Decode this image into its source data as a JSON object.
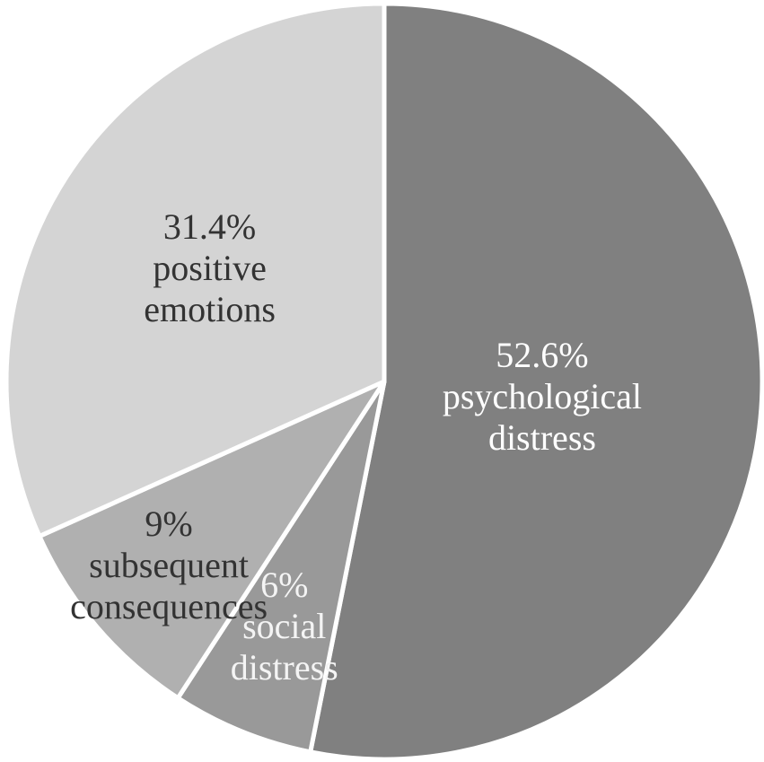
{
  "chart_data": {
    "type": "pie",
    "categories": [
      "psychological distress",
      "social distress",
      "subsequent consequences",
      "positive emotions"
    ],
    "values": [
      52.6,
      6,
      9,
      31.4
    ],
    "value_labels": [
      "52.6%",
      "6%",
      "9%",
      "31.4%"
    ],
    "colors": [
      "#808080",
      "#999999",
      "#b0b0b0",
      "#d4d4d4"
    ]
  }
}
